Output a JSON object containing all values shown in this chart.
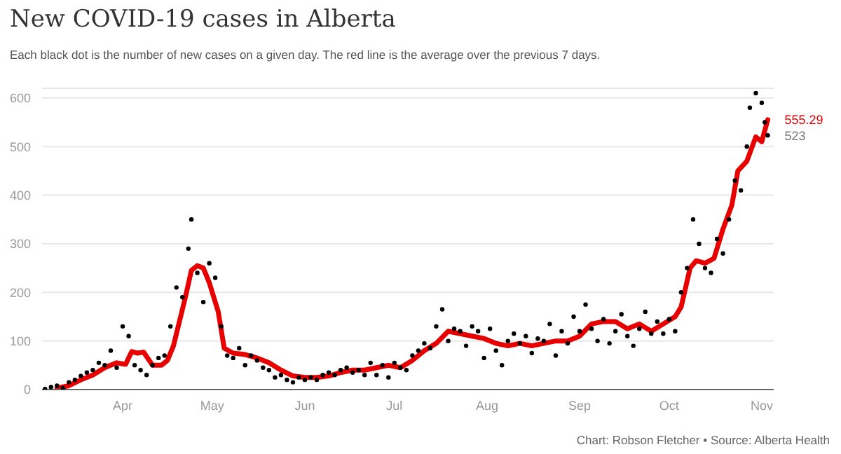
{
  "chart_data": {
    "type": "scatter",
    "title": "New COVID-19 cases in Alberta",
    "subtitle": "Each black dot is the number of new cases on a given day. The red line is the average over the previous 7 days.",
    "xlim": [
      "--03-05",
      "--11-05"
    ],
    "xticks": [
      {
        "value": "--04-01",
        "label": "Apr"
      },
      {
        "value": "--05-01",
        "label": "May"
      },
      {
        "value": "--06-01",
        "label": "Jun"
      },
      {
        "value": "--07-01",
        "label": "Jul"
      },
      {
        "value": "--08-01",
        "label": "Aug"
      },
      {
        "value": "--09-01",
        "label": "Sep"
      },
      {
        "value": "--10-01",
        "label": "Oct"
      },
      {
        "value": "--11-01",
        "label": "Nov"
      }
    ],
    "ylim": [
      0,
      620
    ],
    "yticks": [
      0,
      100,
      200,
      300,
      400,
      500,
      600
    ],
    "grid": "y",
    "marker": "circle",
    "series": [
      {
        "color": "#000000",
        "x": [
          "--03-06",
          "--03-08",
          "--03-10",
          "--03-12",
          "--03-14",
          "--03-16",
          "--03-18",
          "--03-20",
          "--03-22",
          "--03-24",
          "--03-26",
          "--03-28",
          "--03-30",
          "--04-01",
          "--04-03",
          "--04-05",
          "--04-07",
          "--04-09",
          "--04-11",
          "--04-13",
          "--04-15",
          "--04-17",
          "--04-19",
          "--04-21",
          "--04-23",
          "--04-24",
          "--04-26",
          "--04-28",
          "--04-30",
          "--05-02",
          "--05-04",
          "--05-06",
          "--05-08",
          "--05-10",
          "--05-12",
          "--05-14",
          "--05-16",
          "--05-18",
          "--05-20",
          "--05-22",
          "--05-24",
          "--05-26",
          "--05-28",
          "--05-30",
          "--06-01",
          "--06-03",
          "--06-05",
          "--06-07",
          "--06-09",
          "--06-11",
          "--06-13",
          "--06-15",
          "--06-17",
          "--06-19",
          "--06-21",
          "--06-23",
          "--06-25",
          "--06-27",
          "--06-29",
          "--07-01",
          "--07-03",
          "--07-05",
          "--07-07",
          "--07-09",
          "--07-11",
          "--07-13",
          "--07-15",
          "--07-17",
          "--07-19",
          "--07-21",
          "--07-23",
          "--07-25",
          "--07-27",
          "--07-29",
          "--07-31",
          "--08-02",
          "--08-04",
          "--08-06",
          "--08-08",
          "--08-10",
          "--08-12",
          "--08-14",
          "--08-16",
          "--08-18",
          "--08-20",
          "--08-22",
          "--08-24",
          "--08-26",
          "--08-28",
          "--08-30",
          "--09-01",
          "--09-03",
          "--09-05",
          "--09-07",
          "--09-09",
          "--09-11",
          "--09-13",
          "--09-15",
          "--09-17",
          "--09-19",
          "--09-21",
          "--09-23",
          "--09-25",
          "--09-27",
          "--09-29",
          "--10-01",
          "--10-03",
          "--10-05",
          "--10-07",
          "--10-09",
          "--10-11",
          "--10-13",
          "--10-15",
          "--10-17",
          "--10-19",
          "--10-21",
          "--10-23",
          "--10-25",
          "--10-27",
          "--10-28",
          "--10-30",
          "--11-01",
          "--11-02",
          "--11-03"
        ],
        "values": [
          1,
          5,
          8,
          3,
          15,
          20,
          28,
          35,
          40,
          55,
          50,
          80,
          45,
          130,
          110,
          50,
          40,
          30,
          50,
          65,
          70,
          130,
          210,
          190,
          290,
          350,
          240,
          180,
          260,
          230,
          130,
          70,
          65,
          85,
          50,
          70,
          60,
          45,
          40,
          25,
          30,
          20,
          15,
          25,
          20,
          25,
          20,
          30,
          35,
          30,
          40,
          45,
          35,
          40,
          30,
          55,
          30,
          50,
          25,
          55,
          45,
          40,
          70,
          80,
          95,
          85,
          130,
          165,
          100,
          125,
          120,
          90,
          130,
          120,
          65,
          125,
          80,
          50,
          100,
          115,
          95,
          110,
          75,
          105,
          100,
          135,
          70,
          120,
          95,
          150,
          120,
          175,
          125,
          100,
          145,
          95,
          120,
          155,
          110,
          90,
          125,
          160,
          115,
          140,
          115,
          145,
          120,
          200,
          250,
          350,
          300,
          250,
          240,
          310,
          280,
          350,
          430,
          410,
          500,
          580,
          610,
          590,
          550,
          523
        ]
      },
      {
        "type": "line",
        "color": "#e60000",
        "marker": "none",
        "x": [
          "--03-10",
          "--03-14",
          "--03-18",
          "--03-22",
          "--03-26",
          "--03-30",
          "--04-02",
          "--04-04",
          "--04-06",
          "--04-08",
          "--04-11",
          "--04-14",
          "--04-16",
          "--04-18",
          "--04-20",
          "--04-22",
          "--04-24",
          "--04-26",
          "--04-28",
          "--04-30",
          "--05-03",
          "--05-05",
          "--05-08",
          "--05-12",
          "--05-16",
          "--05-20",
          "--05-24",
          "--05-28",
          "--06-01",
          "--06-05",
          "--06-09",
          "--06-13",
          "--06-17",
          "--06-21",
          "--06-25",
          "--06-29",
          "--07-03",
          "--07-07",
          "--07-11",
          "--07-15",
          "--07-19",
          "--07-23",
          "--07-27",
          "--07-31",
          "--08-04",
          "--08-08",
          "--08-12",
          "--08-16",
          "--08-20",
          "--08-24",
          "--08-28",
          "--09-01",
          "--09-05",
          "--09-09",
          "--09-13",
          "--09-17",
          "--09-21",
          "--09-25",
          "--09-29",
          "--10-03",
          "--10-05",
          "--10-08",
          "--10-10",
          "--10-13",
          "--10-16",
          "--10-19",
          "--10-22",
          "--10-24",
          "--10-27",
          "--10-30",
          "--11-01",
          "--11-03"
        ],
        "values": [
          3,
          8,
          20,
          30,
          45,
          55,
          52,
          78,
          75,
          77,
          50,
          50,
          60,
          90,
          140,
          190,
          245,
          255,
          250,
          220,
          160,
          85,
          75,
          72,
          65,
          55,
          40,
          28,
          25,
          25,
          28,
          35,
          40,
          40,
          45,
          50,
          45,
          60,
          80,
          95,
          120,
          115,
          110,
          105,
          95,
          90,
          95,
          90,
          95,
          100,
          100,
          110,
          135,
          140,
          140,
          125,
          135,
          120,
          135,
          150,
          170,
          250,
          265,
          260,
          270,
          330,
          380,
          450,
          470,
          520,
          510,
          555.29
        ]
      }
    ],
    "annotations": [
      {
        "text": "555.29",
        "x": "--11-03",
        "y": 555.29
      },
      {
        "text": "523",
        "x": "--11-03",
        "y": 523
      },
      "Chart: Robson Fletcher • Source: Alberta Health"
    ]
  }
}
